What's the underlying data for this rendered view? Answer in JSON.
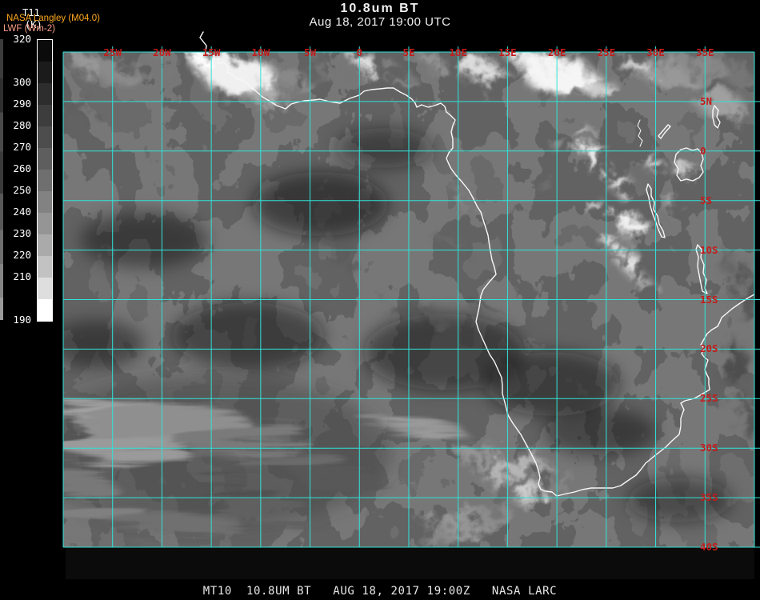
{
  "header": {
    "title": "10.8um BT",
    "subtitle": "Aug 18, 2017 19:00 UTC"
  },
  "legend": {
    "product": "T11",
    "units": "(K)",
    "source": "NASA Langley (M04.0)",
    "overlay_product": "LWF (Wm-2)",
    "source_color": "#ffa81e",
    "overlay_color": "#ff9e8a",
    "colorbar": {
      "units": "K",
      "range_min": 190,
      "range_max": 320,
      "tick_values": [
        320,
        300,
        290,
        280,
        270,
        260,
        250,
        240,
        230,
        220,
        210,
        190
      ],
      "segment_step": 10,
      "segment_colors_top_to_bottom": [
        "#0b0b0b",
        "#1b1b1b",
        "#2d2d2d",
        "#3d3d3d",
        "#4d4d4d",
        "#5e5e5e",
        "#6f6f6f",
        "#828282",
        "#959595",
        "#aaaaaa",
        "#c2c2c2",
        "#dedede",
        "#ffffff"
      ]
    }
  },
  "map": {
    "grid_color": "#31e3da",
    "label_color": "#c41c1c",
    "coast_color": "#f8f8f8",
    "lon_labels": [
      "25W",
      "20W",
      "15W",
      "10W",
      "5W",
      "0",
      "5E",
      "10E",
      "15E",
      "20E",
      "25E",
      "30E",
      "35E"
    ],
    "lat_labels": [
      "5N",
      "0",
      "5S",
      "10S",
      "15S",
      "20S",
      "25S",
      "30S",
      "35S",
      "40S"
    ]
  },
  "footer": {
    "caption": "MT10  10.8UM BT   AUG 18, 2017 19:00Z   NASA LARC"
  }
}
